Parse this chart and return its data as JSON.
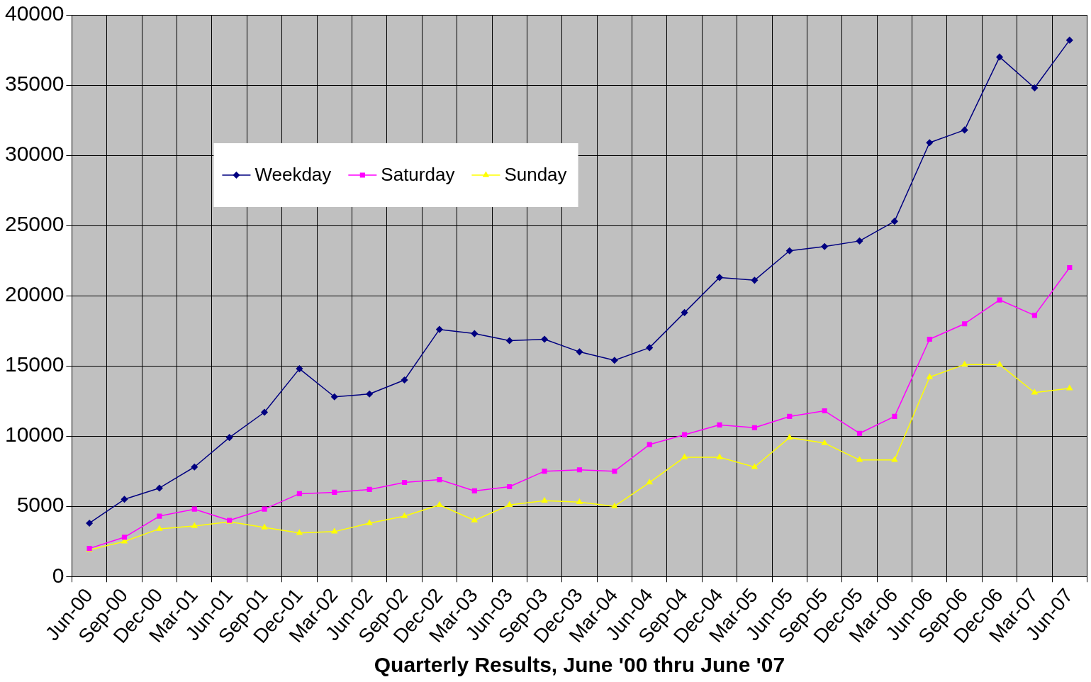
{
  "chart_data": {
    "type": "line",
    "xlabel": "Quarterly Results, June '00 thru June '07",
    "categories": [
      "Jun-00",
      "Sep-00",
      "Dec-00",
      "Mar-01",
      "Jun-01",
      "Sep-01",
      "Dec-01",
      "Mar-02",
      "Jun-02",
      "Sep-02",
      "Dec-02",
      "Mar-03",
      "Jun-03",
      "Sep-03",
      "Dec-03",
      "Mar-04",
      "Jun-04",
      "Sep-04",
      "Dec-04",
      "Mar-05",
      "Jun-05",
      "Sep-05",
      "Dec-05",
      "Mar-06",
      "Jun-06",
      "Sep-06",
      "Dec-06",
      "Mar-07",
      "Jun-07"
    ],
    "series": [
      {
        "name": "Weekday",
        "color": "#000080",
        "marker": "diamond",
        "values": [
          3800,
          5500,
          6300,
          7800,
          9900,
          11700,
          14800,
          12800,
          13000,
          14000,
          17600,
          17300,
          16800,
          16900,
          16000,
          15400,
          16300,
          18800,
          21300,
          21100,
          23200,
          23500,
          23900,
          25300,
          30900,
          31800,
          37000,
          34800,
          38200
        ]
      },
      {
        "name": "Saturday",
        "color": "#ff00ff",
        "marker": "square",
        "values": [
          2000,
          2800,
          4300,
          4800,
          4000,
          4800,
          5900,
          6000,
          6200,
          6700,
          6900,
          6100,
          6400,
          7500,
          7600,
          7500,
          9400,
          10100,
          10800,
          10600,
          11400,
          11800,
          10200,
          11400,
          16900,
          18000,
          19700,
          18600,
          22000
        ]
      },
      {
        "name": "Sunday",
        "color": "#ffff00",
        "marker": "triangle",
        "values": [
          1900,
          2500,
          3400,
          3600,
          3900,
          3500,
          3100,
          3200,
          3800,
          4300,
          5100,
          4000,
          5100,
          5400,
          5300,
          5000,
          6700,
          8500,
          8500,
          7800,
          9900,
          9500,
          8300,
          8300,
          14200,
          15100,
          15100,
          13100,
          13400
        ]
      }
    ],
    "ylim": [
      0,
      40000
    ],
    "yticks": [
      0,
      5000,
      10000,
      15000,
      20000,
      25000,
      30000,
      35000,
      40000
    ],
    "grid": true,
    "legend": "top left",
    "line_style": "solid"
  }
}
